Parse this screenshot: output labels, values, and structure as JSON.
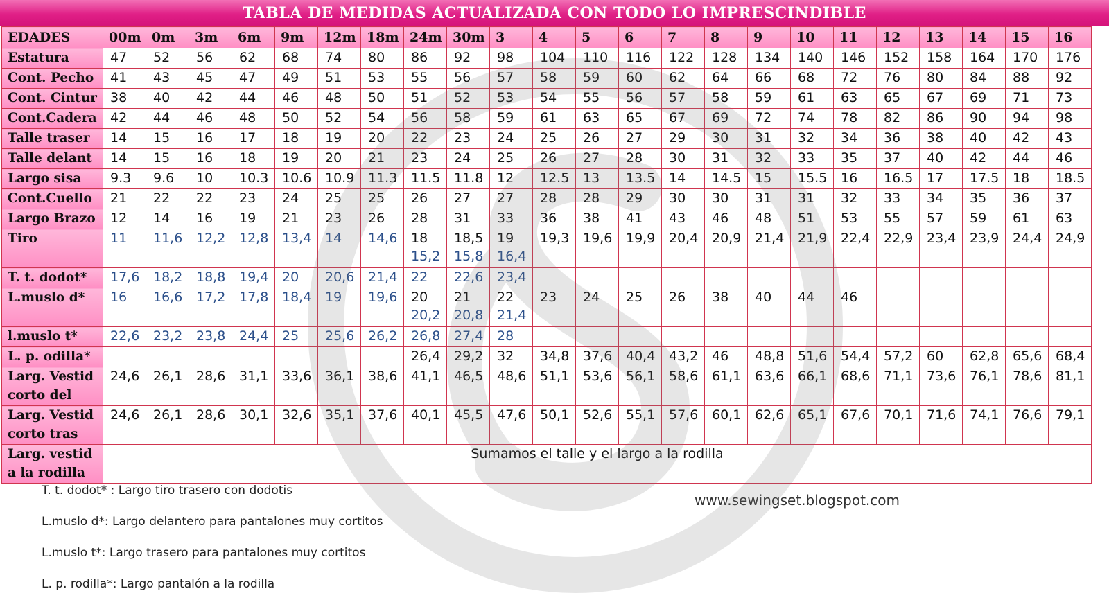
{
  "title": "TABLA DE MEDIDAS ACTUALIZADA CON TODO LO IMPRESCINDIBLE",
  "header": {
    "label": "EDADES",
    "ages": [
      "00m",
      "0m",
      "3m",
      "6m",
      "9m",
      "12m",
      "18m",
      "24m",
      "30m",
      "3",
      "4",
      "5",
      "6",
      "7",
      "8",
      "9",
      "10",
      "11",
      "12",
      "13",
      "14",
      "15",
      "16"
    ]
  },
  "rows": [
    {
      "label": "Estatura",
      "values": [
        "47",
        "52",
        "56",
        "62",
        "68",
        "74",
        "80",
        "86",
        "92",
        "98",
        "104",
        "110",
        "116",
        "122",
        "128",
        "134",
        "140",
        "146",
        "152",
        "158",
        "164",
        "170",
        "176"
      ]
    },
    {
      "label": "Cont. Pecho",
      "values": [
        "41",
        "43",
        "45",
        "47",
        "49",
        "51",
        "53",
        "55",
        "56",
        "57",
        "58",
        "59",
        "60",
        "62",
        "64",
        "66",
        "68",
        "72",
        "76",
        "80",
        "84",
        "88",
        "92"
      ]
    },
    {
      "label": "Cont. Cintur",
      "values": [
        "38",
        "40",
        "42",
        "44",
        "46",
        "48",
        "50",
        "51",
        "52",
        "53",
        "54",
        "55",
        "56",
        "57",
        "58",
        "59",
        "61",
        "63",
        "65",
        "67",
        "69",
        "71",
        "73"
      ]
    },
    {
      "label": "Cont.Cadera",
      "values": [
        "42",
        "44",
        "46",
        "48",
        "50",
        "52",
        "54",
        "56",
        "58",
        "59",
        "61",
        "63",
        "65",
        "67",
        "69",
        "72",
        "74",
        "78",
        "82",
        "86",
        "90",
        "94",
        "98"
      ]
    },
    {
      "label": "Talle traser",
      "values": [
        "14",
        "15",
        "16",
        "17",
        "18",
        "19",
        "20",
        "22",
        "23",
        "24",
        "25",
        "26",
        "27",
        "29",
        "30",
        "31",
        "32",
        "34",
        "36",
        "38",
        "40",
        "42",
        "43"
      ]
    },
    {
      "label": "Talle delant",
      "values": [
        "14",
        "15",
        "16",
        "18",
        "19",
        "20",
        "21",
        "23",
        "24",
        "25",
        "26",
        "27",
        "28",
        "30",
        "31",
        "32",
        "33",
        "35",
        "37",
        "40",
        "42",
        "44",
        "46"
      ]
    },
    {
      "label": "Largo sisa",
      "values": [
        "9.3",
        "9.6",
        "10",
        "10.3",
        "10.6",
        "10.9",
        "11.3",
        "11.5",
        "11.8",
        "12",
        "12.5",
        "13",
        "13.5",
        "14",
        "14.5",
        "15",
        "15.5",
        "16",
        "16.5",
        "17",
        "17.5",
        "18",
        "18.5"
      ]
    },
    {
      "label": "Cont.Cuello",
      "values": [
        "21",
        "22",
        "22",
        "23",
        "24",
        "25",
        "25",
        "26",
        "27",
        "27",
        "28",
        "28",
        "29",
        "30",
        "30",
        "31",
        "31",
        "32",
        "33",
        "34",
        "35",
        "36",
        "37"
      ]
    },
    {
      "label": "Largo Brazo",
      "values": [
        "12",
        "14",
        "16",
        "19",
        "21",
        "23",
        "26",
        "28",
        "31",
        "33",
        "36",
        "38",
        "41",
        "43",
        "46",
        "48",
        "51",
        "53",
        "55",
        "57",
        "59",
        "61",
        "63"
      ]
    }
  ],
  "tiro": {
    "label": "Tiro",
    "blue": [
      "11",
      "11,6",
      "12,2",
      "12,8",
      "13,4",
      "14",
      "14,6"
    ],
    "double": [
      [
        "18",
        "15,2"
      ],
      [
        "18,5",
        "15,8"
      ],
      [
        "19",
        "16,4"
      ]
    ],
    "rest": [
      "19,3",
      "19,6",
      "19,9",
      "20,4",
      "20,9",
      "21,4",
      "21,9",
      "22,4",
      "22,9",
      "23,4",
      "23,9",
      "24,4",
      "24,9"
    ]
  },
  "ttdodot": {
    "label": "T. t. dodot*",
    "values": [
      "17,6",
      "18,2",
      "18,8",
      "19,4",
      "20",
      "20,6",
      "21,4",
      "22",
      "22,6",
      "23,4"
    ]
  },
  "lmuslod": {
    "label": "L.muslo d*",
    "blue": [
      "16",
      "16,6",
      "17,2",
      "17,8",
      "18,4",
      "19",
      "19,6"
    ],
    "double": [
      [
        "20",
        "20,2"
      ],
      [
        "21",
        "20,8"
      ],
      [
        "22",
        "21,4"
      ]
    ],
    "rest": [
      "23",
      "24",
      "25",
      "26",
      "38",
      "40",
      "44",
      "46"
    ]
  },
  "lmuslot": {
    "label": "l.muslo t*",
    "values": [
      "22,6",
      "23,2",
      "23,8",
      "24,4",
      "25",
      "25,6",
      "26,2",
      "26,8",
      "27,4",
      "28"
    ]
  },
  "lpodilla": {
    "label": "L.  p. odilla*",
    "values": [
      "26,4",
      "29,2",
      "32",
      "34,8",
      "37,6",
      "40,4",
      "43,2",
      "46",
      "48,8",
      "51,6",
      "54,4",
      "57,2",
      "60",
      "62,8",
      "65,6",
      "68,4"
    ]
  },
  "vestidodel": {
    "label": "Larg. Vestid corto del",
    "values": [
      "24,6",
      "26,1",
      "28,6",
      "31,1",
      "33,6",
      "36,1",
      "38,6",
      "41,1",
      "46,5",
      "48,6",
      "51,1",
      "53,6",
      "56,1",
      "58,6",
      "61,1",
      "63,6",
      "66,1",
      "68,6",
      "71,1",
      "73,6",
      "76,1",
      "78,6",
      "81,1"
    ]
  },
  "vestidotras": {
    "label": "Larg. Vestid corto tras",
    "values": [
      "24,6",
      "26,1",
      "28,6",
      "30,1",
      "32,6",
      "35,1",
      "37,6",
      "40,1",
      "45,5",
      "47,6",
      "50,1",
      "52,6",
      "55,1",
      "57,6",
      "60,1",
      "62,6",
      "65,1",
      "67,6",
      "70,1",
      "71,6",
      "74,1",
      "76,6",
      "79,1"
    ]
  },
  "rodilla": {
    "label": "Larg. vestid a la rodilla",
    "note": "Sumamos el talle y el largo a la rodilla"
  },
  "footnotes": [
    "T. t. dodot* : Largo tiro trasero con dodotis",
    "L.muslo d*: Largo delantero para pantalones muy cortitos",
    "L.muslo t*: Largo trasero para pantalones muy cortitos",
    "L. p. rodilla*: Largo pantalón a la rodilla"
  ],
  "website": "www.sewingset.blogspot.com",
  "colors": {
    "title_bg": "#e01f86",
    "header_bg": "#ff8fc4",
    "grid": "#d0354f",
    "blue_text": "#2b4f8a"
  }
}
